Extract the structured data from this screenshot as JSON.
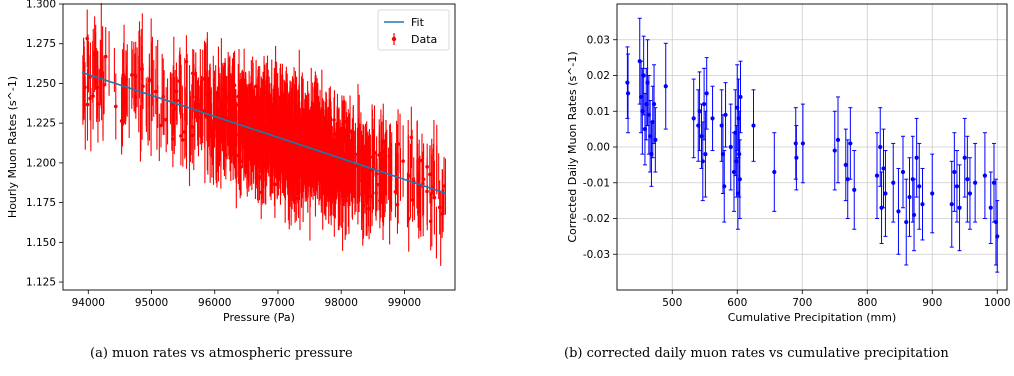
{
  "chart_data": [
    {
      "type": "scatter",
      "xlabel": "Pressure (Pa)",
      "ylabel": "Hourly Muon Rates (s^-1)",
      "xlim": [
        93600,
        99800
      ],
      "ylim": [
        1.12,
        1.3
      ],
      "xticks": [
        94000,
        95000,
        96000,
        97000,
        98000,
        99000
      ],
      "yticks": [
        1.125,
        1.15,
        1.175,
        1.2,
        1.225,
        1.25,
        1.275,
        1.3
      ],
      "grid": false,
      "legend": "top-right",
      "caption": "(a) muon rates vs atmospheric pressure",
      "colors": {
        "fit": "#1f77b4",
        "data": "#ff0000"
      },
      "series": [
        {
          "name": "Fit",
          "kind": "line",
          "x": [
            93900,
            99650
          ],
          "y": [
            1.257,
            1.181
          ]
        },
        {
          "name": "Data",
          "kind": "errorbar",
          "x_range": [
            93900,
            99650
          ],
          "y_center": "fit",
          "y_spread": 0.018,
          "yerr": 0.018,
          "density_peak": 97200
        }
      ]
    },
    {
      "type": "scatter",
      "xlabel": "Cumulative Precipitation (mm)",
      "ylabel": "Corrected Daily Muon Rates (s^-1)",
      "xlim": [
        415,
        1015
      ],
      "ylim": [
        -0.04,
        0.04
      ],
      "xticks": [
        500,
        600,
        700,
        800,
        900,
        1000
      ],
      "yticks": [
        -0.03,
        -0.02,
        -0.01,
        0.0,
        0.01,
        0.02,
        0.03
      ],
      "grid": true,
      "caption": "(b) corrected daily muon rates vs cumulative precipitation",
      "colors": {
        "data": "#0000ff"
      },
      "series": [
        {
          "kind": "errorbar",
          "points": [
            [
              431,
              0.018,
              0.01
            ],
            [
              432,
              0.015,
              0.011
            ],
            [
              450,
              0.024,
              0.012
            ],
            [
              452,
              0.014,
              0.01
            ],
            [
              454,
              0.01,
              0.012
            ],
            [
              456,
              0.02,
              0.011
            ],
            [
              458,
              0.005,
              0.01
            ],
            [
              460,
              0.012,
              0.01
            ],
            [
              462,
              0.018,
              0.012
            ],
            [
              464,
              0.009,
              0.011
            ],
            [
              466,
              0.003,
              0.01
            ],
            [
              468,
              -0.002,
              0.009
            ],
            [
              470,
              0.007,
              0.01
            ],
            [
              472,
              0.012,
              0.011
            ],
            [
              474,
              0.002,
              0.009
            ],
            [
              490,
              0.017,
              0.012
            ],
            [
              533,
              0.008,
              0.011
            ],
            [
              540,
              0.006,
              0.01
            ],
            [
              542,
              0.01,
              0.011
            ],
            [
              545,
              0.003,
              0.009
            ],
            [
              547,
              -0.004,
              0.011
            ],
            [
              549,
              0.012,
              0.01
            ],
            [
              551,
              -0.002,
              0.012
            ],
            [
              553,
              0.015,
              0.01
            ],
            [
              562,
              0.008,
              0.009
            ],
            [
              576,
              0.006,
              0.01
            ],
            [
              578,
              -0.002,
              0.011
            ],
            [
              580,
              -0.011,
              0.01
            ],
            [
              582,
              0.009,
              0.009
            ],
            [
              590,
              0.0,
              0.012
            ],
            [
              595,
              -0.007,
              0.011
            ],
            [
              597,
              0.004,
              0.012
            ],
            [
              599,
              -0.004,
              0.01
            ],
            [
              600,
              0.011,
              0.012
            ],
            [
              601,
              -0.013,
              0.01
            ],
            [
              602,
              0.008,
              0.011
            ],
            [
              603,
              -0.002,
              0.012
            ],
            [
              604,
              -0.009,
              0.011
            ],
            [
              605,
              0.014,
              0.01
            ],
            [
              625,
              0.006,
              0.01
            ],
            [
              657,
              -0.007,
              0.011
            ],
            [
              690,
              0.001,
              0.01
            ],
            [
              691,
              -0.003,
              0.009
            ],
            [
              701,
              0.001,
              0.011
            ],
            [
              750,
              -0.001,
              0.011
            ],
            [
              755,
              0.002,
              0.012
            ],
            [
              767,
              -0.005,
              0.01
            ],
            [
              770,
              -0.009,
              0.011
            ],
            [
              774,
              0.001,
              0.01
            ],
            [
              780,
              -0.012,
              0.011
            ],
            [
              815,
              -0.008,
              0.012
            ],
            [
              820,
              0.0,
              0.011
            ],
            [
              822,
              -0.017,
              0.01
            ],
            [
              825,
              -0.006,
              0.011
            ],
            [
              828,
              -0.013,
              0.012
            ],
            [
              840,
              -0.01,
              0.011
            ],
            [
              848,
              -0.018,
              0.012
            ],
            [
              855,
              -0.007,
              0.01
            ],
            [
              860,
              -0.021,
              0.012
            ],
            [
              865,
              -0.014,
              0.011
            ],
            [
              870,
              -0.009,
              0.012
            ],
            [
              872,
              -0.019,
              0.01
            ],
            [
              876,
              -0.003,
              0.011
            ],
            [
              880,
              -0.011,
              0.012
            ],
            [
              885,
              -0.016,
              0.01
            ],
            [
              900,
              -0.013,
              0.011
            ],
            [
              930,
              -0.016,
              0.012
            ],
            [
              934,
              -0.007,
              0.011
            ],
            [
              938,
              -0.011,
              0.01
            ],
            [
              942,
              -0.017,
              0.012
            ],
            [
              950,
              -0.003,
              0.011
            ],
            [
              954,
              -0.009,
              0.012
            ],
            [
              958,
              -0.013,
              0.01
            ],
            [
              966,
              -0.01,
              0.011
            ],
            [
              981,
              -0.008,
              0.012
            ],
            [
              990,
              -0.017,
              0.01
            ],
            [
              995,
              -0.01,
              0.011
            ],
            [
              998,
              -0.021,
              0.012
            ],
            [
              1000,
              -0.025,
              0.01
            ]
          ]
        }
      ]
    }
  ]
}
